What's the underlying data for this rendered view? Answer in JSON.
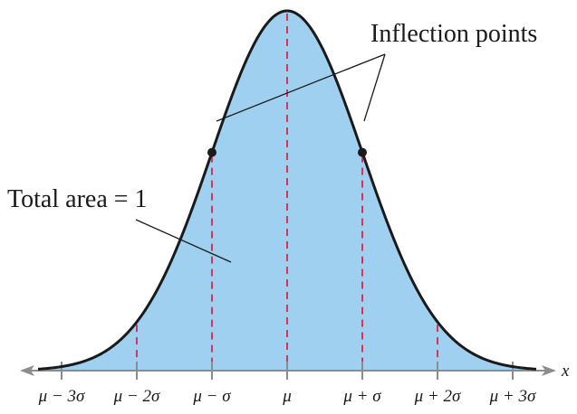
{
  "labels": {
    "inflection": "Inflection points",
    "area": "Total area = 1",
    "axis_var": "x"
  },
  "ticks": [
    {
      "label": "μ − 3σ",
      "k": -3
    },
    {
      "label": "μ − 2σ",
      "k": -2
    },
    {
      "label": "μ − σ",
      "k": -1
    },
    {
      "label": "μ",
      "k": 0
    },
    {
      "label": "μ + σ",
      "k": 1
    },
    {
      "label": "μ + 2σ",
      "k": 2
    },
    {
      "label": "μ + 3σ",
      "k": 3
    }
  ],
  "colors": {
    "fill": "#9fd0ef",
    "curve": "#1a1a1a",
    "dashed": "#d4365a",
    "axis": "#8c8c8c",
    "text": "#1a1a1a"
  }
}
